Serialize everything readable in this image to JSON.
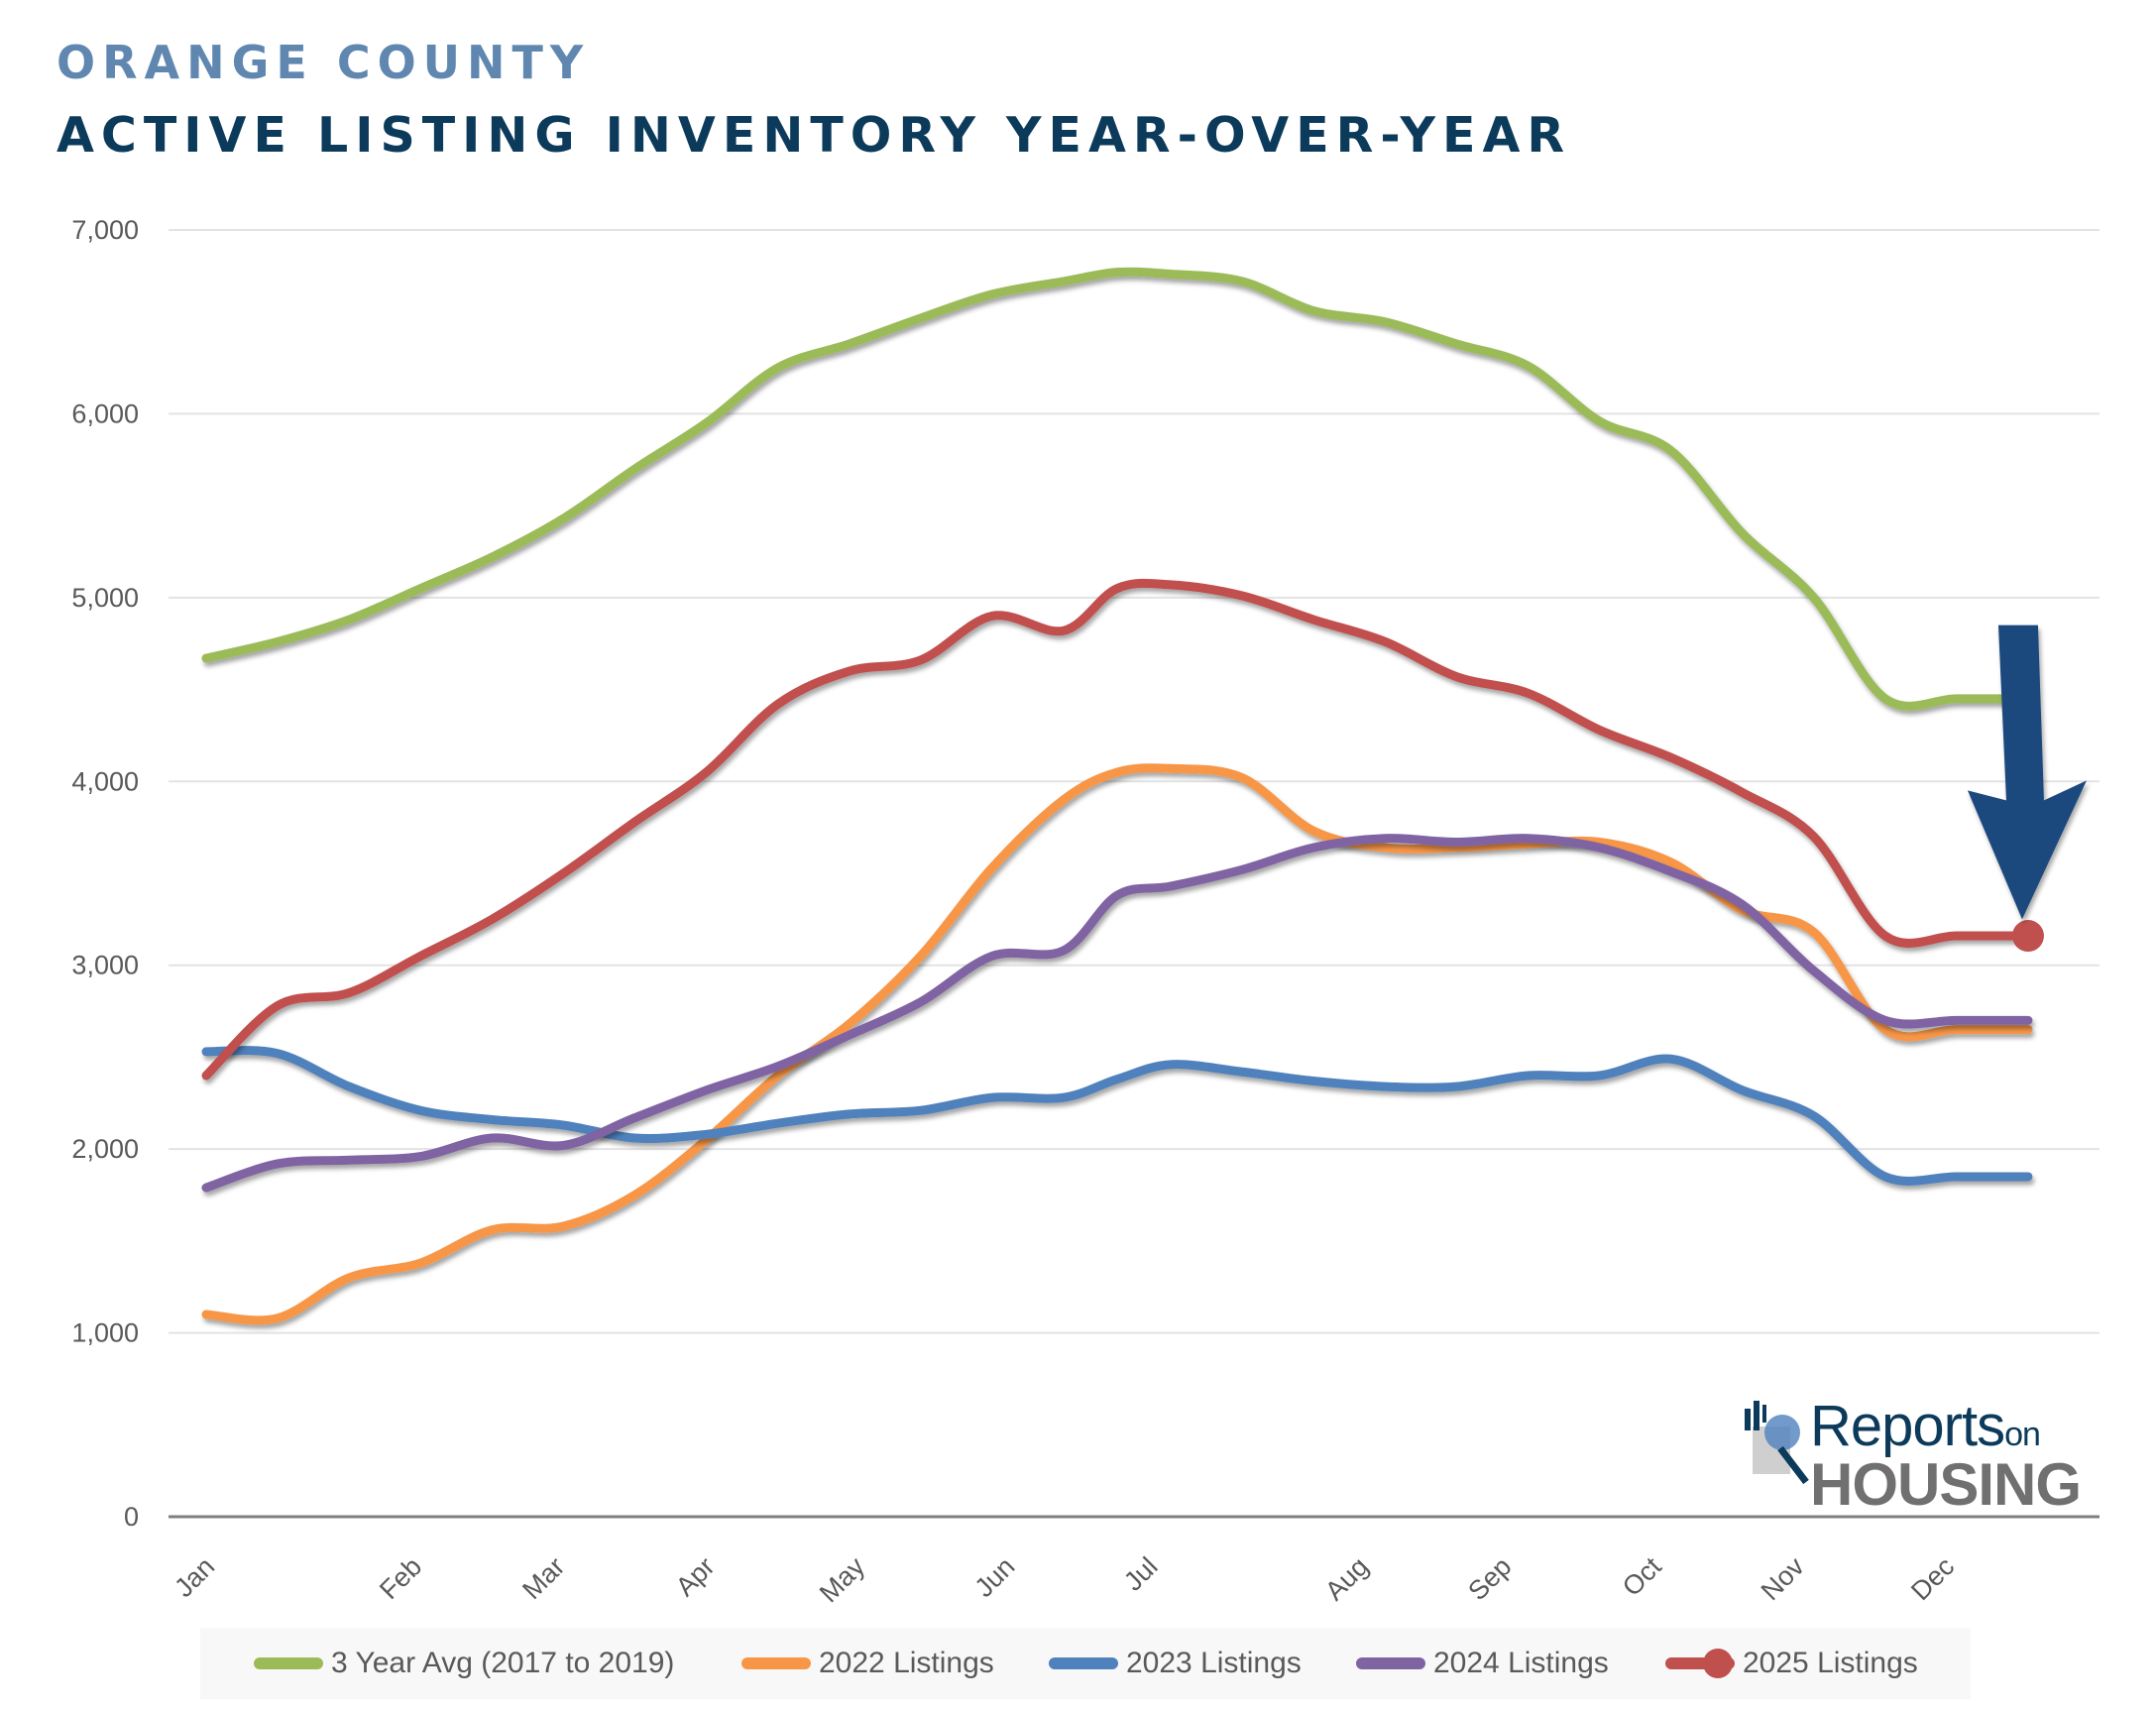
{
  "header": {
    "subtitle": "ORANGE COUNTY",
    "title": "ACTIVE LISTING INVENTORY YEAR-OVER-YEAR"
  },
  "logo": {
    "line1": "Reports",
    "line1_suffix": "on",
    "line2": "HOUSING"
  },
  "chart_data": {
    "type": "line",
    "title": "ACTIVE LISTING INVENTORY YEAR-OVER-YEAR",
    "subtitle": "ORANGE COUNTY",
    "xlabel": "",
    "ylabel": "",
    "ylim": [
      0,
      7000
    ],
    "yticks": [
      0,
      1000,
      2000,
      3000,
      4000,
      5000,
      6000,
      7000
    ],
    "ytick_labels": [
      "0",
      "1,000",
      "2,000",
      "3,000",
      "4,000",
      "5,000",
      "6,000",
      "7,000"
    ],
    "grid": true,
    "legend_position": "bottom",
    "x_unit": "week of year (0 = Jan 1, 52 = end of Dec)",
    "xlim": [
      0,
      51
    ],
    "month_ticks": [
      {
        "label": "Jan",
        "x": 0
      },
      {
        "label": "Feb",
        "x": 5.8
      },
      {
        "label": "Mar",
        "x": 9.8
      },
      {
        "label": "Apr",
        "x": 14.0
      },
      {
        "label": "May",
        "x": 18.2
      },
      {
        "label": "Jun",
        "x": 22.4
      },
      {
        "label": "Jul",
        "x": 26.4
      },
      {
        "label": "Aug",
        "x": 32.3
      },
      {
        "label": "Sep",
        "x": 36.3
      },
      {
        "label": "Oct",
        "x": 40.5
      },
      {
        "label": "Nov",
        "x": 44.5
      },
      {
        "label": "Dec",
        "x": 48.7
      }
    ],
    "x": [
      0,
      2,
      4,
      6,
      8,
      10,
      12,
      14,
      16,
      18,
      20,
      22,
      24,
      25.5,
      27,
      29,
      31,
      33,
      35,
      37,
      39,
      41,
      43,
      45,
      47,
      49,
      51
    ],
    "series": [
      {
        "name": "3 Year Avg (2017 to 2019)",
        "color": "#9bbb59",
        "values": [
          4670,
          4760,
          4880,
          5050,
          5220,
          5430,
          5700,
          5950,
          6250,
          6380,
          6520,
          6650,
          6720,
          6770,
          6760,
          6720,
          6560,
          6500,
          6380,
          6260,
          5960,
          5800,
          5350,
          5000,
          4450,
          4450,
          4450
        ],
        "end_x": 51
      },
      {
        "name": "2022 Listings",
        "color": "#f79646",
        "values": [
          1100,
          1080,
          1300,
          1380,
          1560,
          1580,
          1750,
          2050,
          2400,
          2680,
          3050,
          3530,
          3900,
          4050,
          4070,
          4020,
          3730,
          3640,
          3640,
          3660,
          3670,
          3560,
          3300,
          3180,
          2650,
          2650,
          2650
        ],
        "end_x": 51
      },
      {
        "name": "2023 Listings",
        "color": "#4f81bd",
        "values": [
          2530,
          2520,
          2340,
          2210,
          2160,
          2130,
          2060,
          2080,
          2140,
          2190,
          2210,
          2280,
          2280,
          2380,
          2460,
          2420,
          2370,
          2340,
          2340,
          2400,
          2400,
          2490,
          2320,
          2180,
          1850,
          1850,
          1850
        ],
        "end_x": 51
      },
      {
        "name": "2024 Listings",
        "color": "#8064a2",
        "values": [
          1790,
          1920,
          1940,
          1960,
          2060,
          2020,
          2170,
          2320,
          2450,
          2620,
          2800,
          3050,
          3080,
          3380,
          3430,
          3520,
          3640,
          3690,
          3670,
          3690,
          3640,
          3510,
          3330,
          2970,
          2700,
          2700,
          2700
        ],
        "end_x": 51
      },
      {
        "name": "2025 Listings",
        "color": "#c0504d",
        "values": [
          2400,
          2780,
          2850,
          3050,
          3250,
          3500,
          3780,
          4050,
          4420,
          4600,
          4660,
          4900,
          4820,
          5050,
          5070,
          5010,
          4880,
          4760,
          4570,
          4480,
          4280,
          4130,
          3940,
          3700,
          3160,
          3160,
          3160
        ],
        "end_x": 51,
        "end_marker": true
      }
    ],
    "annotations": [
      {
        "type": "arrow",
        "color": "#1f497d",
        "direction": "down",
        "points_to": "2025 Listings last value",
        "from_value": 4850,
        "to_value": 3250
      }
    ]
  },
  "legend": [
    {
      "label": "3 Year Avg (2017 to 2019)",
      "color": "#9bbb59",
      "marker": false
    },
    {
      "label": "2022 Listings",
      "color": "#f79646",
      "marker": false
    },
    {
      "label": "2023 Listings",
      "color": "#4f81bd",
      "marker": false
    },
    {
      "label": "2024 Listings",
      "color": "#8064a2",
      "marker": false
    },
    {
      "label": "2025 Listings",
      "color": "#c0504d",
      "marker": true
    }
  ]
}
